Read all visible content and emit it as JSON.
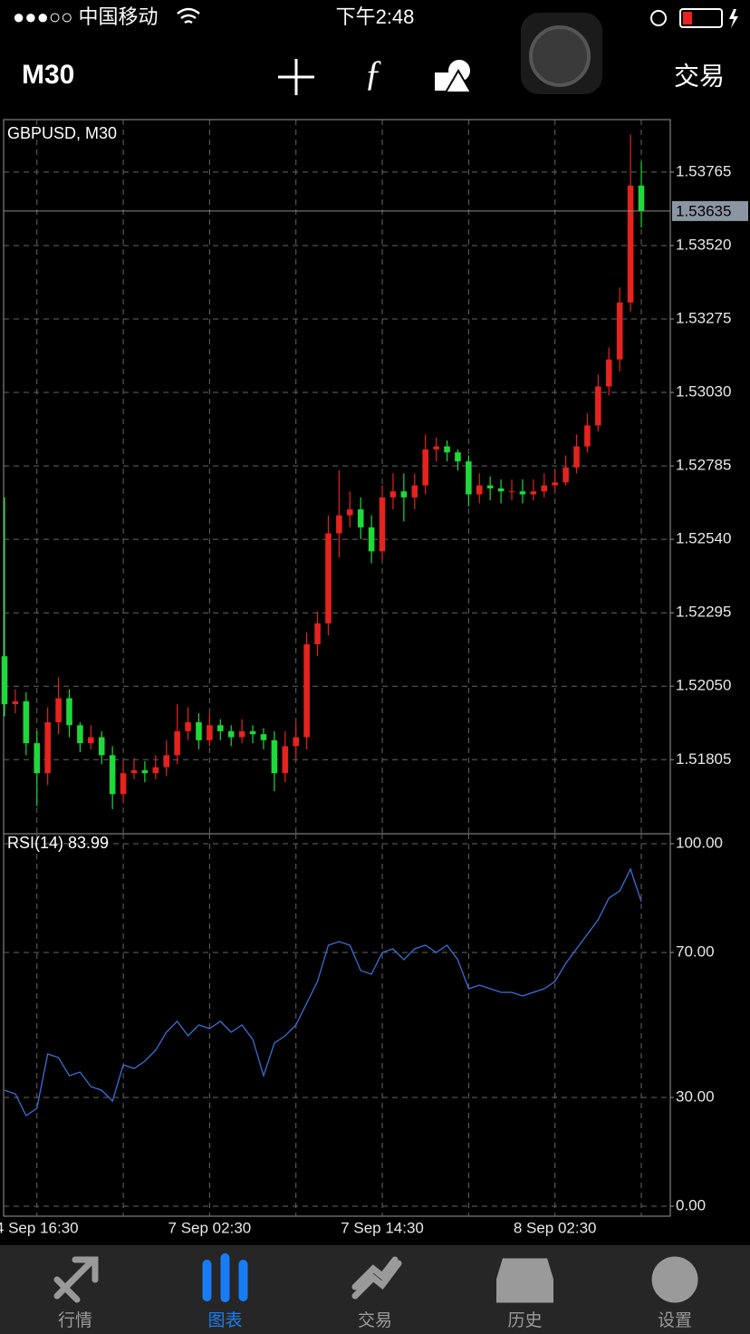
{
  "status_bar": {
    "carrier": "●●●○○ 中国移动",
    "time": "下午2:48"
  },
  "toolbar": {
    "timeframe": "M30",
    "trade": "交易"
  },
  "chart_data": [
    {
      "type": "candlestick",
      "title": "GBPUSD, M30",
      "categories": [
        null,
        null,
        null,
        "4 Sep 16:30",
        null,
        null,
        null,
        null,
        null,
        null,
        null,
        null,
        null,
        null,
        null,
        null,
        null,
        null,
        null,
        "7 Sep 02:30",
        null,
        null,
        null,
        null,
        null,
        null,
        null,
        null,
        null,
        null,
        null,
        null,
        null,
        null,
        null,
        "7 Sep 14:30",
        null,
        null,
        null,
        null,
        null,
        null,
        null,
        null,
        null,
        null,
        null,
        null,
        null,
        null,
        null,
        "8 Sep 02:30",
        null,
        null,
        null,
        null,
        null,
        null,
        null,
        null
      ],
      "open": [
        1.5215,
        1.5199,
        1.52,
        1.5186,
        1.5176,
        1.5193,
        1.5201,
        1.5192,
        1.5186,
        1.5188,
        1.5182,
        1.5169,
        1.5176,
        1.5177,
        1.5176,
        1.5178,
        1.5182,
        1.519,
        1.5193,
        1.5187,
        1.5192,
        1.519,
        1.5188,
        1.519,
        1.5189,
        1.5187,
        1.5176,
        1.5185,
        1.5188,
        1.5219,
        1.5226,
        1.5256,
        1.5262,
        1.5264,
        1.5258,
        1.525,
        1.5268,
        1.527,
        1.5268,
        1.5272,
        1.5284,
        1.5285,
        1.5283,
        1.528,
        1.5269,
        1.5272,
        1.5271,
        1.527,
        1.527,
        1.5269,
        1.527,
        1.5272,
        1.5273,
        1.5278,
        1.5285,
        1.5292,
        1.5305,
        1.5314,
        1.5333,
        1.5372
      ],
      "high": [
        1.5268,
        1.5204,
        1.5203,
        1.519,
        1.5198,
        1.5208,
        1.5204,
        1.5193,
        1.5192,
        1.519,
        1.5185,
        1.518,
        1.5181,
        1.518,
        1.5182,
        1.5187,
        1.5199,
        1.5198,
        1.5196,
        1.5196,
        1.5194,
        1.5192,
        1.5194,
        1.5192,
        1.5191,
        1.519,
        1.519,
        1.5193,
        1.5223,
        1.523,
        1.5262,
        1.5277,
        1.527,
        1.5268,
        1.5262,
        1.5272,
        1.5276,
        1.5276,
        1.5276,
        1.5289,
        1.5288,
        1.5287,
        1.5284,
        1.5282,
        1.5276,
        1.5275,
        1.5274,
        1.5274,
        1.5274,
        1.5274,
        1.5276,
        1.5277,
        1.5282,
        1.5289,
        1.5296,
        1.5309,
        1.5318,
        1.5338,
        1.5389,
        1.538
      ],
      "low": [
        1.5195,
        1.5196,
        1.5182,
        1.5165,
        1.5172,
        1.5189,
        1.5188,
        1.5183,
        1.5184,
        1.5179,
        1.5164,
        1.5166,
        1.5174,
        1.5173,
        1.5174,
        1.5175,
        1.5179,
        1.5187,
        1.5184,
        1.5185,
        1.5187,
        1.5185,
        1.5186,
        1.5186,
        1.5184,
        1.517,
        1.5173,
        1.5181,
        1.5184,
        1.5215,
        1.5222,
        1.5248,
        1.5258,
        1.5254,
        1.5246,
        1.5247,
        1.5264,
        1.526,
        1.5264,
        1.5269,
        1.528,
        1.528,
        1.5277,
        1.5265,
        1.5266,
        1.5267,
        1.5266,
        1.5267,
        1.5266,
        1.5267,
        1.5268,
        1.527,
        1.5272,
        1.5276,
        1.5283,
        1.529,
        1.5302,
        1.531,
        1.533,
        1.5358
      ],
      "close": [
        1.5199,
        1.52,
        1.5186,
        1.5176,
        1.5193,
        1.5201,
        1.5192,
        1.5186,
        1.5188,
        1.5182,
        1.5169,
        1.5176,
        1.5177,
        1.5176,
        1.5178,
        1.5182,
        1.519,
        1.5193,
        1.5187,
        1.5192,
        1.519,
        1.5188,
        1.519,
        1.5189,
        1.5187,
        1.5176,
        1.5185,
        1.5188,
        1.5219,
        1.5226,
        1.5256,
        1.5262,
        1.5264,
        1.5258,
        1.525,
        1.5268,
        1.527,
        1.5268,
        1.5272,
        1.5284,
        1.5285,
        1.5283,
        1.528,
        1.5269,
        1.5272,
        1.5271,
        1.527,
        1.527,
        1.5269,
        1.527,
        1.5272,
        1.5273,
        1.5278,
        1.5285,
        1.5292,
        1.5305,
        1.5314,
        1.5333,
        1.5372,
        1.53635
      ],
      "up_color": "#e5231f",
      "down_color": "#1fd93a",
      "ylim": [
        1.51558,
        1.5394
      ],
      "yticks": [
        {
          "value": 1.51805,
          "label": "1.51805"
        },
        {
          "value": 1.5205,
          "label": "1.52050"
        },
        {
          "value": 1.52295,
          "label": "1.52295"
        },
        {
          "value": 1.5254,
          "label": "1.52540"
        },
        {
          "value": 1.52785,
          "label": "1.52785"
        },
        {
          "value": 1.5303,
          "label": "1.53030"
        },
        {
          "value": 1.53275,
          "label": "1.53275"
        },
        {
          "value": 1.5352,
          "label": "1.53520"
        },
        {
          "value": 1.53765,
          "label": "1.53765"
        }
      ],
      "current": {
        "value": 1.53635,
        "label": "1.53635"
      },
      "grid": true
    },
    {
      "type": "line",
      "title": "RSI(14) 83.99",
      "values": [
        32,
        31,
        25,
        27,
        42,
        41,
        36,
        37,
        33,
        32,
        29,
        39,
        38,
        40,
        43,
        48,
        51,
        47,
        50,
        49,
        51,
        48,
        50,
        46,
        36,
        45,
        47,
        50,
        56,
        62,
        72,
        73,
        72,
        65,
        64,
        70,
        71,
        68,
        71,
        72,
        70,
        72,
        68,
        60,
        61,
        60,
        59,
        59,
        58,
        59,
        60,
        62,
        67,
        71,
        75,
        79,
        85,
        87,
        93,
        83.99
      ],
      "color": "#3a6fd8",
      "ylim": [
        -2.75,
        102.75
      ],
      "yticks": [
        {
          "value": 0,
          "label": "0.00"
        },
        {
          "value": 30,
          "label": "30.00"
        },
        {
          "value": 70,
          "label": "70.00"
        },
        {
          "value": 100,
          "label": "100.00"
        }
      ],
      "grid": true
    }
  ],
  "tab_bar": {
    "tabs": [
      "行情",
      "图表",
      "交易",
      "历史",
      "设置"
    ],
    "active": 1
  }
}
